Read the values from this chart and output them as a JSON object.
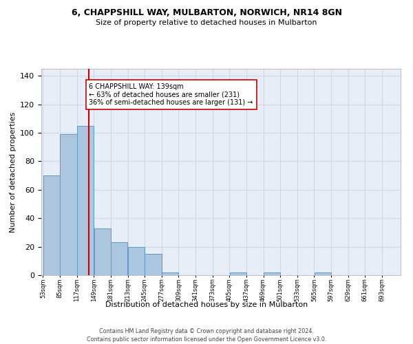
{
  "title": "6, CHAPPSHILL WAY, MULBARTON, NORWICH, NR14 8GN",
  "subtitle": "Size of property relative to detached houses in Mulbarton",
  "xlabel": "Distribution of detached houses by size in Mulbarton",
  "ylabel": "Number of detached properties",
  "bar_values": [
    70,
    99,
    105,
    33,
    23,
    20,
    15,
    2,
    0,
    0,
    0,
    2,
    0,
    2,
    0,
    0,
    2,
    0,
    0,
    0,
    0
  ],
  "bin_edges": [
    53,
    85,
    117,
    149,
    181,
    213,
    245,
    277,
    309,
    341,
    373,
    405,
    437,
    469,
    501,
    533,
    565,
    597,
    629,
    661,
    693,
    725
  ],
  "x_labels": [
    "53sqm",
    "85sqm",
    "117sqm",
    "149sqm",
    "181sqm",
    "213sqm",
    "245sqm",
    "277sqm",
    "309sqm",
    "341sqm",
    "373sqm",
    "405sqm",
    "437sqm",
    "469sqm",
    "501sqm",
    "533sqm",
    "565sqm",
    "597sqm",
    "629sqm",
    "661sqm",
    "693sqm"
  ],
  "bar_color": "#adc6e0",
  "bar_edge_color": "#5a9ac8",
  "bar_edge_width": 0.7,
  "property_line_x": 139,
  "property_line_color": "#cc0000",
  "annotation_text": "6 CHAPPSHILL WAY: 139sqm\n← 63% of detached houses are smaller (231)\n36% of semi-detached houses are larger (131) →",
  "annotation_box_color": "#ffffff",
  "annotation_box_edge": "#cc0000",
  "ylim": [
    0,
    145
  ],
  "yticks": [
    0,
    20,
    40,
    60,
    80,
    100,
    120,
    140
  ],
  "grid_color": "#d0d8e8",
  "bg_color": "#e8eef8",
  "footer_line1": "Contains HM Land Registry data © Crown copyright and database right 2024.",
  "footer_line2": "Contains public sector information licensed under the Open Government Licence v3.0."
}
